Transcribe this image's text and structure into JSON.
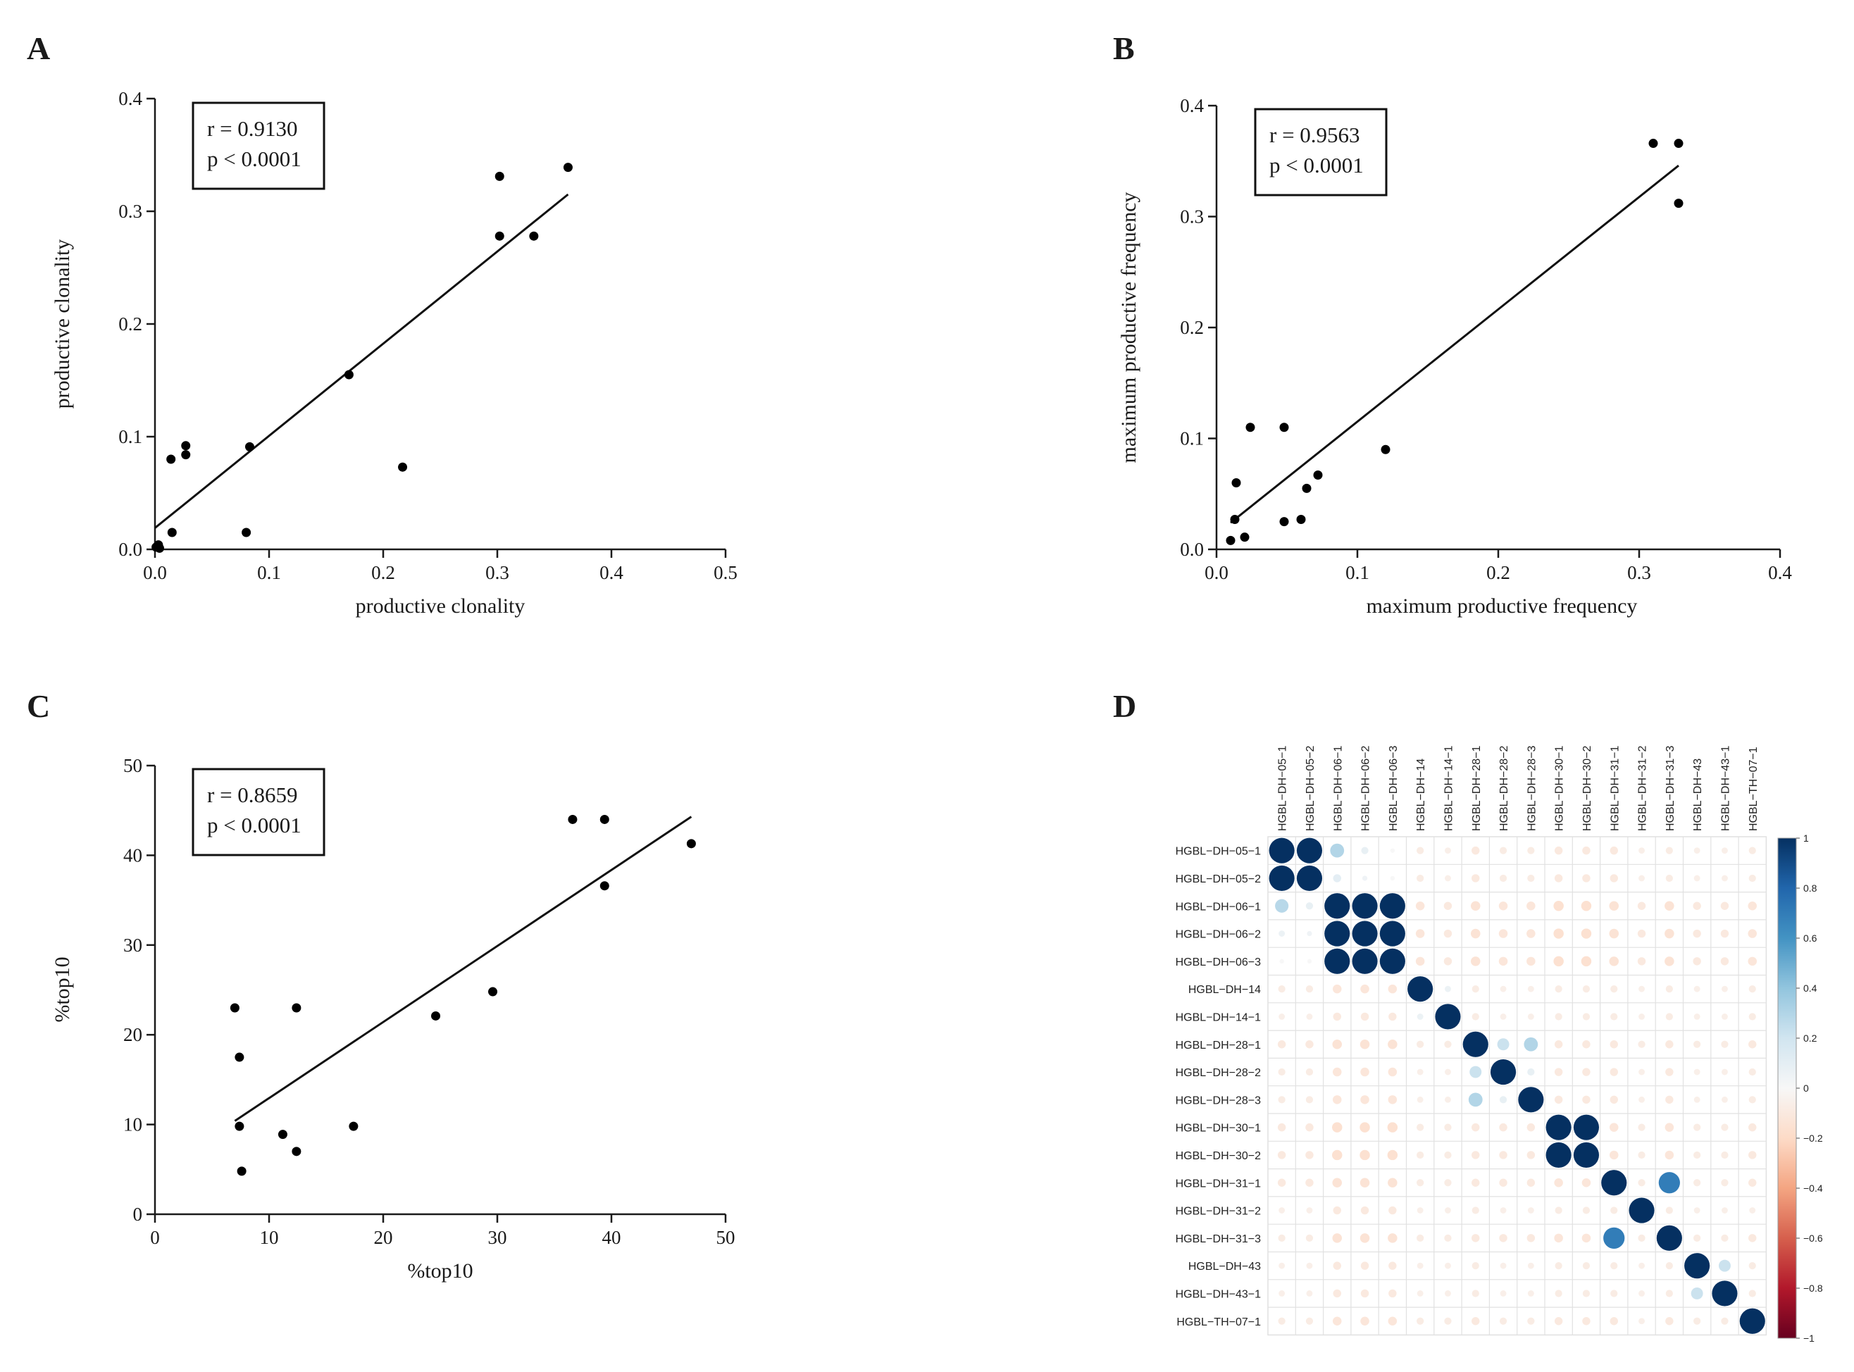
{
  "panels": {
    "A": {
      "letter": "A",
      "stats": [
        "r = 0.9130",
        "p < 0.0001"
      ],
      "chart_data": {
        "type": "scatter",
        "xlabel": "productive clonality",
        "ylabel": "productive clonality",
        "xlim": [
          0,
          0.5
        ],
        "ylim": [
          0,
          0.4
        ],
        "xticks": [
          "0.0",
          "0.1",
          "0.2",
          "0.3",
          "0.4",
          "0.5"
        ],
        "yticks": [
          "0.0",
          "0.1",
          "0.2",
          "0.3",
          "0.4"
        ],
        "points": [
          {
            "x": 0.001,
            "y": 0.002
          },
          {
            "x": 0.003,
            "y": 0.004
          },
          {
            "x": 0.004,
            "y": 0.001
          },
          {
            "x": 0.014,
            "y": 0.08
          },
          {
            "x": 0.015,
            "y": 0.015
          },
          {
            "x": 0.027,
            "y": 0.092
          },
          {
            "x": 0.027,
            "y": 0.084
          },
          {
            "x": 0.08,
            "y": 0.015
          },
          {
            "x": 0.083,
            "y": 0.091
          },
          {
            "x": 0.17,
            "y": 0.155
          },
          {
            "x": 0.217,
            "y": 0.073
          },
          {
            "x": 0.302,
            "y": 0.331
          },
          {
            "x": 0.302,
            "y": 0.278
          },
          {
            "x": 0.332,
            "y": 0.278
          },
          {
            "x": 0.362,
            "y": 0.339
          }
        ],
        "fit": {
          "x": [
            0,
            0.362
          ],
          "y": [
            0.019,
            0.315
          ]
        }
      }
    },
    "B": {
      "letter": "B",
      "stats": [
        "r = 0.9563",
        "p < 0.0001"
      ],
      "chart_data": {
        "type": "scatter",
        "xlabel": "maximum productive frequency",
        "ylabel": "maximum productive frequency",
        "xlim": [
          0,
          0.4
        ],
        "ylim": [
          0,
          0.4
        ],
        "xticks": [
          "0.0",
          "0.1",
          "0.2",
          "0.3",
          "0.4"
        ],
        "yticks": [
          "0.0",
          "0.1",
          "0.2",
          "0.3",
          "0.4"
        ],
        "points": [
          {
            "x": 0.01,
            "y": 0.008
          },
          {
            "x": 0.013,
            "y": 0.027
          },
          {
            "x": 0.014,
            "y": 0.06
          },
          {
            "x": 0.02,
            "y": 0.011
          },
          {
            "x": 0.024,
            "y": 0.11
          },
          {
            "x": 0.048,
            "y": 0.11
          },
          {
            "x": 0.048,
            "y": 0.025
          },
          {
            "x": 0.06,
            "y": 0.027
          },
          {
            "x": 0.064,
            "y": 0.055
          },
          {
            "x": 0.072,
            "y": 0.067
          },
          {
            "x": 0.12,
            "y": 0.09
          },
          {
            "x": 0.31,
            "y": 0.366
          },
          {
            "x": 0.328,
            "y": 0.366
          },
          {
            "x": 0.328,
            "y": 0.312
          }
        ],
        "fit": {
          "x": [
            0.01,
            0.328
          ],
          "y": [
            0.024,
            0.346
          ]
        }
      }
    },
    "C": {
      "letter": "C",
      "stats": [
        "r = 0.8659",
        "p < 0.0001"
      ],
      "chart_data": {
        "type": "scatter",
        "xlabel": "%top10",
        "ylabel": "%top10",
        "xlim": [
          0,
          50
        ],
        "ylim": [
          0,
          50
        ],
        "xticks": [
          "0",
          "10",
          "20",
          "30",
          "40",
          "50"
        ],
        "yticks": [
          "0",
          "10",
          "20",
          "30",
          "40",
          "50"
        ],
        "points": [
          {
            "x": 7.0,
            "y": 23.0
          },
          {
            "x": 7.4,
            "y": 17.5
          },
          {
            "x": 7.4,
            "y": 9.8
          },
          {
            "x": 7.6,
            "y": 4.8
          },
          {
            "x": 11.2,
            "y": 8.9
          },
          {
            "x": 12.4,
            "y": 23.0
          },
          {
            "x": 12.4,
            "y": 7.0
          },
          {
            "x": 17.4,
            "y": 9.8
          },
          {
            "x": 24.6,
            "y": 22.1
          },
          {
            "x": 29.6,
            "y": 24.8
          },
          {
            "x": 36.6,
            "y": 44.0
          },
          {
            "x": 39.4,
            "y": 44.0
          },
          {
            "x": 39.4,
            "y": 36.6
          },
          {
            "x": 47.0,
            "y": 41.3
          }
        ],
        "fit": {
          "x": [
            7.0,
            47.0
          ],
          "y": [
            10.4,
            44.3
          ]
        }
      }
    },
    "D": {
      "letter": "D",
      "chart_data": {
        "type": "heatmap",
        "labels": [
          "HGBL−DH−05−1",
          "HGBL−DH−05−2",
          "HGBL−DH−06−1",
          "HGBL−DH−06−2",
          "HGBL−DH−06−3",
          "HGBL−DH−14",
          "HGBL−DH−14−1",
          "HGBL−DH−28−1",
          "HGBL−DH−28−2",
          "HGBL−DH−28−3",
          "HGBL−DH−30−1",
          "HGBL−DH−30−2",
          "HGBL−DH−31−1",
          "HGBL−DH−31−2",
          "HGBL−DH−31−3",
          "HGBL−DH−43",
          "HGBL−DH−43−1",
          "HGBL−TH−07−1"
        ],
        "colorbar_ticks": [
          "1",
          "0.8",
          "0.6",
          "0.4",
          "0.2",
          "0",
          "−0.2",
          "−0.4",
          "−0.6",
          "−0.8",
          "−1"
        ],
        "colorbar_range": [
          -1,
          1
        ],
        "matrix": [
          [
            1.0,
            1.0,
            0.3,
            0.08,
            0.0,
            -0.08,
            -0.06,
            -0.1,
            -0.08,
            -0.08,
            -0.1,
            -0.1,
            -0.1,
            -0.06,
            -0.08,
            -0.06,
            -0.06,
            -0.08
          ],
          [
            1.0,
            1.0,
            0.1,
            0.04,
            0.0,
            -0.08,
            -0.06,
            -0.1,
            -0.08,
            -0.08,
            -0.1,
            -0.1,
            -0.1,
            -0.06,
            -0.08,
            -0.06,
            -0.06,
            -0.08
          ],
          [
            0.28,
            0.08,
            1.0,
            1.0,
            1.0,
            -0.12,
            -0.1,
            -0.14,
            -0.12,
            -0.12,
            -0.16,
            -0.16,
            -0.14,
            -0.1,
            -0.14,
            -0.1,
            -0.1,
            -0.12
          ],
          [
            0.06,
            0.04,
            1.0,
            1.0,
            1.0,
            -0.12,
            -0.1,
            -0.14,
            -0.12,
            -0.12,
            -0.16,
            -0.16,
            -0.14,
            -0.1,
            -0.14,
            -0.1,
            -0.1,
            -0.12
          ],
          [
            0.0,
            0.0,
            1.0,
            1.0,
            1.0,
            -0.12,
            -0.1,
            -0.14,
            -0.12,
            -0.12,
            -0.16,
            -0.16,
            -0.14,
            -0.1,
            -0.14,
            -0.1,
            -0.1,
            -0.12
          ],
          [
            -0.08,
            -0.08,
            -0.12,
            -0.12,
            -0.12,
            1.0,
            0.06,
            -0.08,
            -0.06,
            -0.06,
            -0.08,
            -0.08,
            -0.08,
            -0.06,
            -0.08,
            -0.06,
            -0.06,
            -0.08
          ],
          [
            -0.06,
            -0.06,
            -0.1,
            -0.1,
            -0.1,
            0.06,
            1.0,
            -0.08,
            -0.06,
            -0.06,
            -0.08,
            -0.08,
            -0.08,
            -0.06,
            -0.08,
            -0.06,
            -0.06,
            -0.08
          ],
          [
            -0.1,
            -0.1,
            -0.14,
            -0.14,
            -0.14,
            -0.08,
            -0.08,
            1.0,
            0.22,
            0.3,
            -0.1,
            -0.1,
            -0.1,
            -0.08,
            -0.1,
            -0.08,
            -0.08,
            -0.1
          ],
          [
            -0.08,
            -0.08,
            -0.12,
            -0.12,
            -0.12,
            -0.06,
            -0.06,
            0.22,
            1.0,
            0.08,
            -0.1,
            -0.1,
            -0.1,
            -0.06,
            -0.1,
            -0.06,
            -0.06,
            -0.08
          ],
          [
            -0.08,
            -0.08,
            -0.12,
            -0.12,
            -0.12,
            -0.06,
            -0.06,
            0.3,
            0.08,
            1.0,
            -0.1,
            -0.1,
            -0.1,
            -0.06,
            -0.1,
            -0.06,
            -0.06,
            -0.08
          ],
          [
            -0.1,
            -0.1,
            -0.16,
            -0.16,
            -0.16,
            -0.08,
            -0.08,
            -0.1,
            -0.1,
            -0.1,
            1.0,
            1.0,
            -0.12,
            -0.08,
            -0.12,
            -0.08,
            -0.08,
            -0.1
          ],
          [
            -0.1,
            -0.1,
            -0.16,
            -0.16,
            -0.16,
            -0.08,
            -0.08,
            -0.1,
            -0.1,
            -0.1,
            1.0,
            1.0,
            -0.12,
            -0.08,
            -0.12,
            -0.08,
            -0.08,
            -0.1
          ],
          [
            -0.1,
            -0.1,
            -0.14,
            -0.14,
            -0.14,
            -0.08,
            -0.08,
            -0.1,
            -0.1,
            -0.1,
            -0.12,
            -0.12,
            1.0,
            -0.08,
            0.7,
            -0.08,
            -0.08,
            -0.1
          ],
          [
            -0.06,
            -0.06,
            -0.1,
            -0.1,
            -0.1,
            -0.06,
            -0.06,
            -0.08,
            -0.06,
            -0.06,
            -0.08,
            -0.08,
            -0.08,
            1.0,
            -0.08,
            -0.06,
            -0.06,
            -0.06
          ],
          [
            -0.08,
            -0.08,
            -0.14,
            -0.14,
            -0.14,
            -0.08,
            -0.08,
            -0.1,
            -0.1,
            -0.1,
            -0.12,
            -0.12,
            0.7,
            -0.08,
            1.0,
            -0.08,
            -0.08,
            -0.1
          ],
          [
            -0.06,
            -0.06,
            -0.1,
            -0.1,
            -0.1,
            -0.06,
            -0.06,
            -0.08,
            -0.06,
            -0.06,
            -0.08,
            -0.08,
            -0.08,
            -0.06,
            -0.08,
            1.0,
            0.22,
            -0.08
          ],
          [
            -0.06,
            -0.06,
            -0.1,
            -0.1,
            -0.1,
            -0.06,
            -0.06,
            -0.08,
            -0.06,
            -0.06,
            -0.08,
            -0.08,
            -0.08,
            -0.06,
            -0.08,
            0.22,
            1.0,
            -0.08
          ],
          [
            -0.08,
            -0.08,
            -0.12,
            -0.12,
            -0.12,
            -0.08,
            -0.08,
            -0.1,
            -0.08,
            -0.08,
            -0.1,
            -0.1,
            -0.1,
            -0.06,
            -0.1,
            -0.08,
            -0.08,
            1.0
          ]
        ]
      }
    }
  },
  "colors": {
    "point": "#000000",
    "axis": "#1a1a1a",
    "positive_strong": "#053061",
    "neutral": "#f7f7f7",
    "negative_strong": "#67001f",
    "grid": "#e1e1e1"
  }
}
